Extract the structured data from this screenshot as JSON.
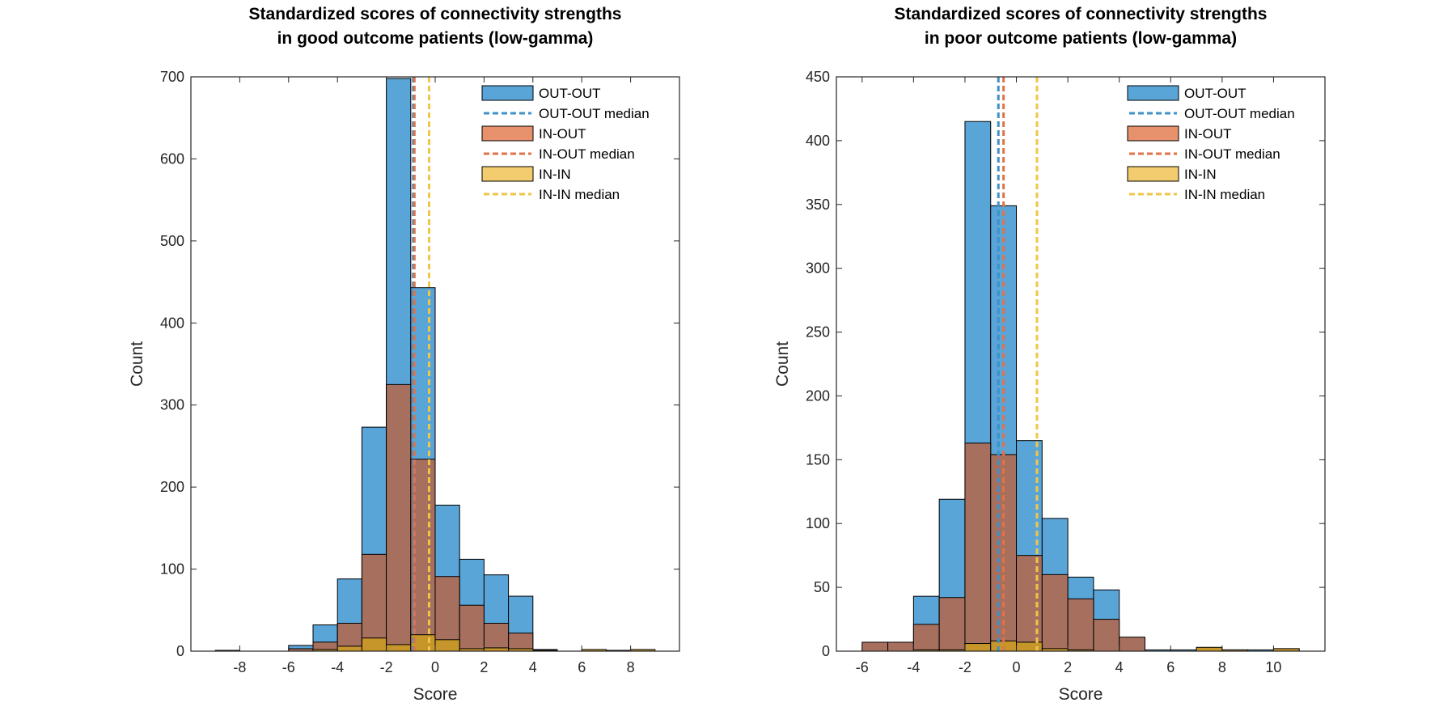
{
  "chart_data": [
    {
      "type": "histogram",
      "title": [
        "Standardized scores of connectivity strengths",
        "in good outcome patients (low-gamma)"
      ],
      "xlabel": "Score",
      "ylabel": "Count",
      "xlim": [
        -10,
        10
      ],
      "ylim": [
        0,
        700
      ],
      "xticks": [
        -8,
        -6,
        -4,
        -2,
        0,
        2,
        4,
        6,
        8
      ],
      "yticks": [
        0,
        100,
        200,
        300,
        400,
        500,
        600,
        700
      ],
      "bin_edges": [
        -9,
        -8,
        -7,
        -6,
        -5,
        -4,
        -3,
        -2,
        -1,
        0,
        1,
        2,
        3,
        4,
        5,
        6,
        7,
        8,
        9
      ],
      "series": [
        {
          "name": "OUT-OUT",
          "color": "#5aa5d8",
          "values": [
            1,
            0,
            0,
            7,
            32,
            88,
            273,
            698,
            443,
            178,
            112,
            93,
            67,
            2,
            0,
            1,
            0,
            0
          ]
        },
        {
          "name": "IN-OUT",
          "color": "#a66f5e",
          "values": [
            0,
            0,
            0,
            3,
            11,
            34,
            118,
            325,
            234,
            91,
            56,
            34,
            22,
            1,
            0,
            0,
            0,
            0
          ]
        },
        {
          "name": "IN-IN",
          "color": "#c7962b",
          "values": [
            0,
            0,
            0,
            0,
            2,
            6,
            16,
            8,
            20,
            14,
            3,
            4,
            3,
            0,
            0,
            2,
            1,
            2
          ]
        }
      ],
      "medians": [
        {
          "name": "OUT-OUT median",
          "x": -0.9,
          "color": "#3f91c9"
        },
        {
          "name": "IN-OUT median",
          "x": -0.85,
          "color": "#e0734a"
        },
        {
          "name": "IN-IN median",
          "x": -0.25,
          "color": "#f0c646"
        }
      ],
      "legend": {
        "position": "top-right",
        "items": [
          {
            "label": "OUT-OUT",
            "kind": "patch",
            "fill": "#5aa5d8"
          },
          {
            "label": "OUT-OUT median",
            "kind": "line",
            "color": "#3f91c9"
          },
          {
            "label": "IN-OUT",
            "kind": "patch",
            "fill": "#e8916d"
          },
          {
            "label": "IN-OUT median",
            "kind": "line",
            "color": "#e0734a"
          },
          {
            "label": "IN-IN",
            "kind": "patch",
            "fill": "#f2cc6e"
          },
          {
            "label": "IN-IN median",
            "kind": "line",
            "color": "#f0c646"
          }
        ]
      }
    },
    {
      "type": "histogram",
      "title": [
        "Standardized scores of connectivity strengths",
        "in poor outcome patients (low-gamma)"
      ],
      "xlabel": "Score",
      "ylabel": "Count",
      "xlim": [
        -7,
        12
      ],
      "ylim": [
        0,
        450
      ],
      "xticks": [
        -6,
        -4,
        -2,
        0,
        2,
        4,
        6,
        8,
        10
      ],
      "yticks": [
        0,
        50,
        100,
        150,
        200,
        250,
        300,
        350,
        400,
        450
      ],
      "bin_edges": [
        -6,
        -5,
        -4,
        -3,
        -2,
        -1,
        0,
        1,
        2,
        3,
        4,
        5,
        6,
        7,
        8,
        9,
        10,
        11
      ],
      "series": [
        {
          "name": "OUT-OUT",
          "color": "#5aa5d8",
          "values": [
            1,
            2,
            43,
            119,
            415,
            349,
            165,
            104,
            58,
            48,
            2,
            1,
            1,
            1,
            1,
            1,
            1
          ]
        },
        {
          "name": "IN-OUT",
          "color": "#a66f5e",
          "values": [
            7,
            7,
            21,
            42,
            163,
            154,
            75,
            60,
            41,
            25,
            11,
            0,
            0,
            0,
            0,
            0,
            0
          ]
        },
        {
          "name": "IN-IN",
          "color": "#c7962b",
          "values": [
            0,
            0,
            1,
            1,
            6,
            8,
            7,
            2,
            1,
            0,
            0,
            0,
            0,
            3,
            1,
            0,
            2
          ]
        }
      ],
      "medians": [
        {
          "name": "OUT-OUT median",
          "x": -0.7,
          "color": "#3f91c9"
        },
        {
          "name": "IN-OUT median",
          "x": -0.5,
          "color": "#e0734a"
        },
        {
          "name": "IN-IN median",
          "x": 0.8,
          "color": "#f0c646"
        }
      ],
      "legend": {
        "position": "top-right",
        "items": [
          {
            "label": "OUT-OUT",
            "kind": "patch",
            "fill": "#5aa5d8"
          },
          {
            "label": "OUT-OUT median",
            "kind": "line",
            "color": "#3f91c9"
          },
          {
            "label": "IN-OUT",
            "kind": "patch",
            "fill": "#e8916d"
          },
          {
            "label": "IN-OUT median",
            "kind": "line",
            "color": "#e0734a"
          },
          {
            "label": "IN-IN",
            "kind": "patch",
            "fill": "#f2cc6e"
          },
          {
            "label": "IN-IN median",
            "kind": "line",
            "color": "#f0c646"
          }
        ]
      }
    }
  ]
}
